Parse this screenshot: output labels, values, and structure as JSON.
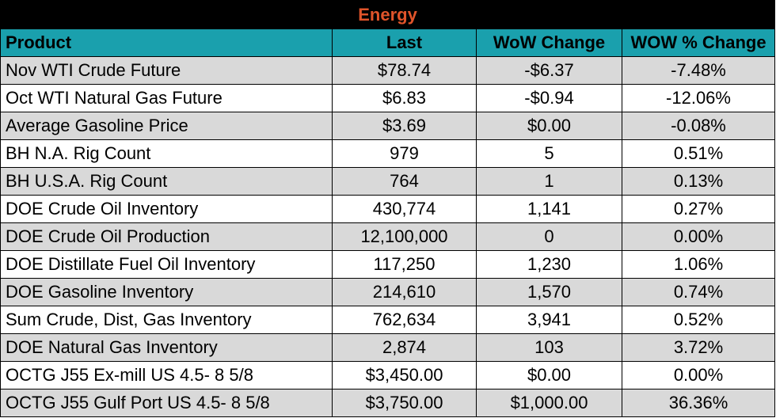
{
  "table": {
    "title": "Energy",
    "columns": [
      "Product",
      "Last",
      "WoW Change",
      "WOW % Change"
    ],
    "rows": [
      {
        "product": "Nov WTI Crude Future",
        "last": "$78.74",
        "wow_change": "-$6.37",
        "wow_pct_change": "-7.48%"
      },
      {
        "product": "Oct WTI Natural Gas Future",
        "last": "$6.83",
        "wow_change": "-$0.94",
        "wow_pct_change": "-12.06%"
      },
      {
        "product": "Average Gasoline Price",
        "last": "$3.69",
        "wow_change": "$0.00",
        "wow_pct_change": "-0.08%"
      },
      {
        "product": "BH N.A. Rig Count",
        "last": "979",
        "wow_change": "5",
        "wow_pct_change": "0.51%"
      },
      {
        "product": "BH U.S.A. Rig Count",
        "last": "764",
        "wow_change": "1",
        "wow_pct_change": "0.13%"
      },
      {
        "product": "DOE Crude Oil Inventory",
        "last": "430,774",
        "wow_change": "1,141",
        "wow_pct_change": "0.27%"
      },
      {
        "product": "DOE Crude Oil Production",
        "last": "12,100,000",
        "wow_change": "0",
        "wow_pct_change": "0.00%"
      },
      {
        "product": "DOE Distillate Fuel Oil Inventory",
        "last": "117,250",
        "wow_change": "1,230",
        "wow_pct_change": "1.06%"
      },
      {
        "product": "DOE Gasoline Inventory",
        "last": "214,610",
        "wow_change": "1,570",
        "wow_pct_change": "0.74%"
      },
      {
        "product": "Sum Crude, Dist, Gas Inventory",
        "last": "762,634",
        "wow_change": "3,941",
        "wow_pct_change": "0.52%"
      },
      {
        "product": "DOE Natural Gas Inventory",
        "last": "2,874",
        "wow_change": "103",
        "wow_pct_change": "3.72%"
      },
      {
        "product": "OCTG J55 Ex-mill US 4.5- 8 5/8",
        "last": "$3,450.00",
        "wow_change": "$0.00",
        "wow_pct_change": "0.00%"
      },
      {
        "product": "OCTG J55 Gulf Port US 4.5- 8 5/8",
        "last": "$3,750.00",
        "wow_change": "$1,000.00",
        "wow_pct_change": "36.36%"
      }
    ]
  },
  "colors": {
    "title_background": "#000000",
    "title_text": "#e0542a",
    "header_background": "#1aa0ad",
    "row_shaded": "#d9d9d9",
    "row_plain": "#ffffff",
    "grid": "#000000"
  }
}
